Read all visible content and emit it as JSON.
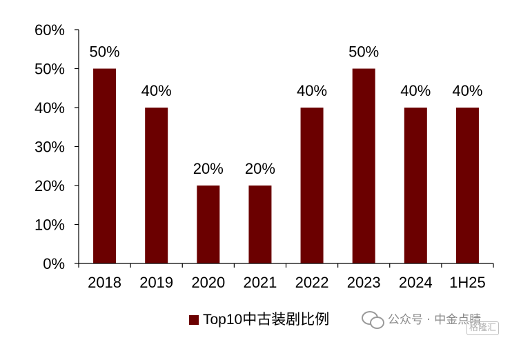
{
  "chart_data": {
    "type": "bar",
    "categories": [
      "2018",
      "2019",
      "2020",
      "2021",
      "2022",
      "2023",
      "2024",
      "1H25"
    ],
    "series": [
      {
        "name": "Top10中古装剧比例",
        "values": [
          50,
          40,
          20,
          20,
          40,
          50,
          40,
          40
        ],
        "data_labels": [
          "50%",
          "40%",
          "20%",
          "20%",
          "40%",
          "50%",
          "40%",
          "40%"
        ],
        "color": "#6b0000"
      }
    ],
    "ylim": [
      0,
      60
    ],
    "yticks": [
      0,
      10,
      20,
      30,
      40,
      50,
      60
    ],
    "ytick_labels": [
      "0%",
      "10%",
      "20%",
      "30%",
      "40%",
      "50%",
      "60%"
    ],
    "grid": false,
    "legend_position": "bottom-center",
    "title": "",
    "xlabel": "",
    "ylabel": ""
  },
  "legend": {
    "label": "Top10中古装剧比例"
  },
  "watermark": {
    "icon": "wechat-icon",
    "text": "公众号 · 中金点睛"
  },
  "corner_logo": {
    "text": "格隆汇"
  }
}
